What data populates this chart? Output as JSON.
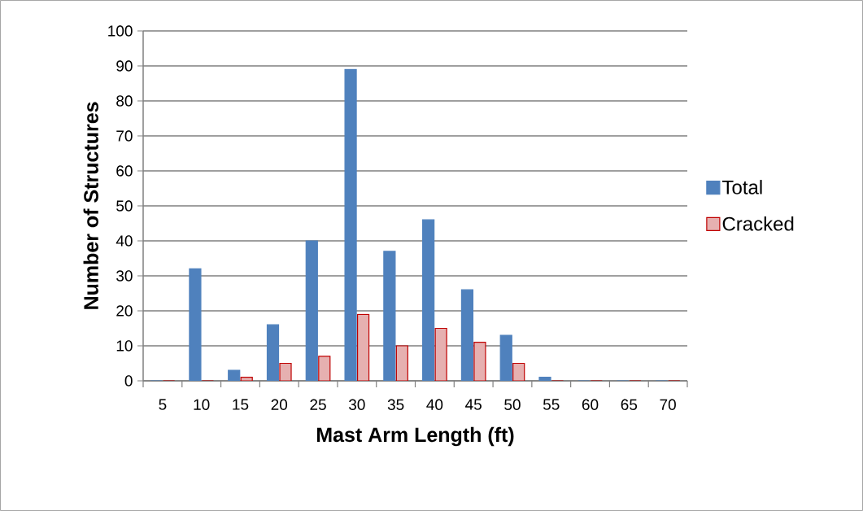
{
  "chart_data": {
    "type": "bar",
    "xlabel": "Mast Arm Length (ft)",
    "ylabel": "Number of Structures",
    "categories": [
      "5",
      "10",
      "15",
      "20",
      "25",
      "30",
      "35",
      "40",
      "45",
      "50",
      "55",
      "60",
      "65",
      "70"
    ],
    "series": [
      {
        "name": "Total",
        "color": "#4f81bd",
        "values": [
          0,
          32,
          3,
          16,
          40,
          89,
          37,
          46,
          26,
          13,
          1,
          0,
          0,
          0
        ]
      },
      {
        "name": "Cracked",
        "color": "#e6b0b0",
        "values": [
          0,
          0,
          1,
          5,
          7,
          19,
          10,
          15,
          11,
          5,
          0,
          0,
          0,
          0
        ]
      }
    ],
    "ylim": [
      0,
      100
    ],
    "yticks": [
      0,
      10,
      20,
      30,
      40,
      50,
      60,
      70,
      80,
      90,
      100
    ],
    "grid": "y",
    "legend": "right"
  }
}
